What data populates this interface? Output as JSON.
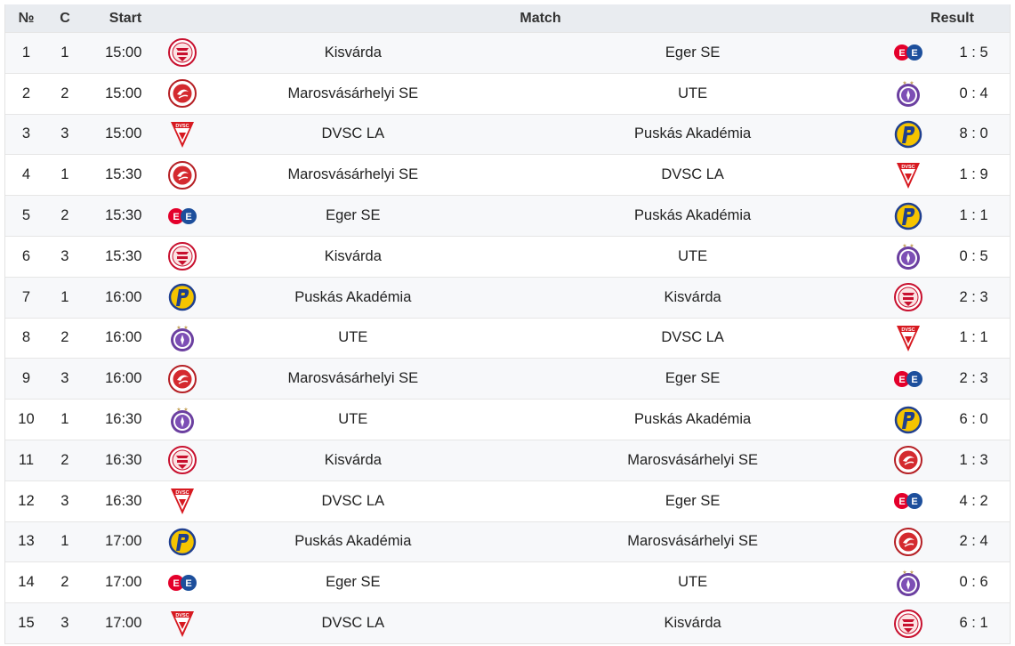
{
  "header": {
    "no": "№",
    "c": "C",
    "start": "Start",
    "match": "Match",
    "result": "Result"
  },
  "rows": [
    {
      "no": "1",
      "c": "1",
      "start": "15:00",
      "home": "Kisvárda",
      "home_logo": "kisvarda-logo",
      "away": "Eger SE",
      "away_logo": "eger-logo",
      "result": "1 : 5"
    },
    {
      "no": "2",
      "c": "2",
      "start": "15:00",
      "home": "Marosvásárhelyi SE",
      "home_logo": "marosvasarhelyi-logo",
      "away": "UTE",
      "away_logo": "ute-logo",
      "result": "0 : 4"
    },
    {
      "no": "3",
      "c": "3",
      "start": "15:00",
      "home": "DVSC LA",
      "home_logo": "dvsc-logo",
      "away": "Puskás Akadémia",
      "away_logo": "puskas-logo",
      "result": "8 : 0"
    },
    {
      "no": "4",
      "c": "1",
      "start": "15:30",
      "home": "Marosvásárhelyi SE",
      "home_logo": "marosvasarhelyi-logo",
      "away": "DVSC LA",
      "away_logo": "dvsc-logo",
      "result": "1 : 9"
    },
    {
      "no": "5",
      "c": "2",
      "start": "15:30",
      "home": "Eger SE",
      "home_logo": "eger-logo",
      "away": "Puskás Akadémia",
      "away_logo": "puskas-logo",
      "result": "1 : 1"
    },
    {
      "no": "6",
      "c": "3",
      "start": "15:30",
      "home": "Kisvárda",
      "home_logo": "kisvarda-logo",
      "away": "UTE",
      "away_logo": "ute-logo",
      "result": "0 : 5"
    },
    {
      "no": "7",
      "c": "1",
      "start": "16:00",
      "home": "Puskás Akadémia",
      "home_logo": "puskas-logo",
      "away": "Kisvárda",
      "away_logo": "kisvarda-logo",
      "result": "2 : 3"
    },
    {
      "no": "8",
      "c": "2",
      "start": "16:00",
      "home": "UTE",
      "home_logo": "ute-logo",
      "away": "DVSC LA",
      "away_logo": "dvsc-logo",
      "result": "1 : 1"
    },
    {
      "no": "9",
      "c": "3",
      "start": "16:00",
      "home": "Marosvásárhelyi SE",
      "home_logo": "marosvasarhelyi-logo",
      "away": "Eger SE",
      "away_logo": "eger-logo",
      "result": "2 : 3"
    },
    {
      "no": "10",
      "c": "1",
      "start": "16:30",
      "home": "UTE",
      "home_logo": "ute-logo",
      "away": "Puskás Akadémia",
      "away_logo": "puskas-logo",
      "result": "6 : 0"
    },
    {
      "no": "11",
      "c": "2",
      "start": "16:30",
      "home": "Kisvárda",
      "home_logo": "kisvarda-logo",
      "away": "Marosvásárhelyi SE",
      "away_logo": "marosvasarhelyi-logo",
      "result": "1 : 3"
    },
    {
      "no": "12",
      "c": "3",
      "start": "16:30",
      "home": "DVSC LA",
      "home_logo": "dvsc-logo",
      "away": "Eger SE",
      "away_logo": "eger-logo",
      "result": "4 : 2"
    },
    {
      "no": "13",
      "c": "1",
      "start": "17:00",
      "home": "Puskás Akadémia",
      "home_logo": "puskas-logo",
      "away": "Marosvásárhelyi SE",
      "away_logo": "marosvasarhelyi-logo",
      "result": "2 : 4"
    },
    {
      "no": "14",
      "c": "2",
      "start": "17:00",
      "home": "Eger SE",
      "home_logo": "eger-logo",
      "away": "UTE",
      "away_logo": "ute-logo",
      "result": "0 : 6"
    },
    {
      "no": "15",
      "c": "3",
      "start": "17:00",
      "home": "DVSC LA",
      "home_logo": "dvsc-logo",
      "away": "Kisvárda",
      "away_logo": "kisvarda-logo",
      "result": "6 : 1"
    }
  ]
}
